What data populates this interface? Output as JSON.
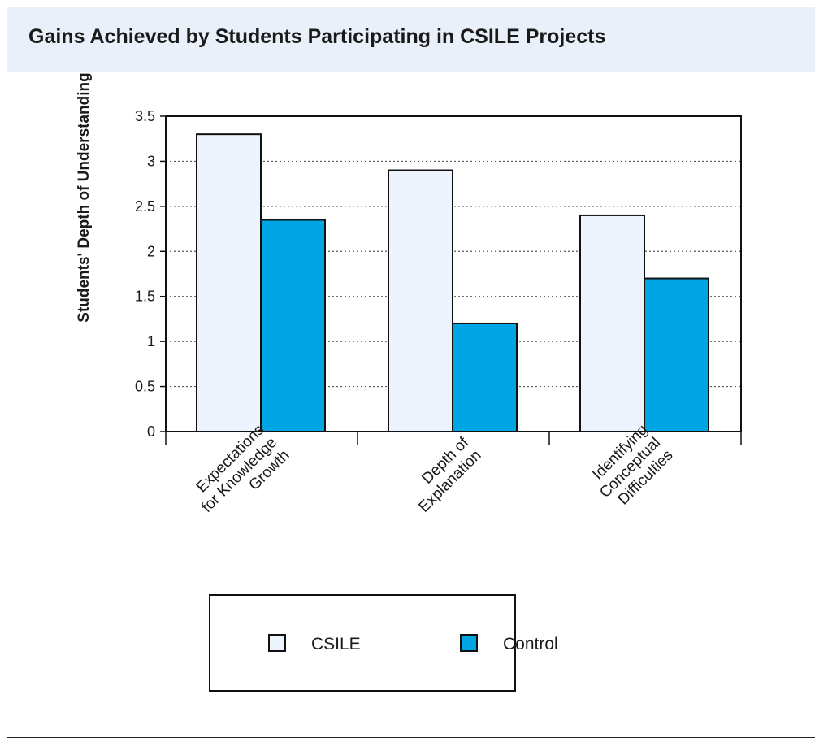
{
  "title": "Gains Achieved by Students Participating in CSILE Projects",
  "colors": {
    "title_background": "#e9f0f9",
    "csile": "#eef4fd",
    "control": "#00a6e4",
    "grid": "#555555",
    "axis": "#111111"
  },
  "chart_data": {
    "type": "bar",
    "categories": [
      [
        "Expectations",
        "for Knowledge",
        "Growth"
      ],
      [
        "Depth of",
        "Explanation"
      ],
      [
        "Identifying",
        "Conceptual",
        "Difficulties"
      ]
    ],
    "series": [
      {
        "name": "CSILE",
        "values": [
          3.3,
          2.9,
          2.4
        ]
      },
      {
        "name": "Control",
        "values": [
          2.35,
          1.2,
          1.7
        ]
      }
    ],
    "title": "Gains Achieved by Students Participating in CSILE Projects",
    "xlabel": "",
    "ylabel": "Students' Depth of Understanding",
    "ylim": [
      0,
      3.5
    ],
    "yticks": [
      "0",
      "0.5",
      "1",
      "1.5",
      "2",
      "2.5",
      "3",
      "3.5"
    ],
    "grid": "horizontal dotted",
    "legend": [
      "CSILE",
      "Control"
    ],
    "legend_position": "bottom"
  }
}
